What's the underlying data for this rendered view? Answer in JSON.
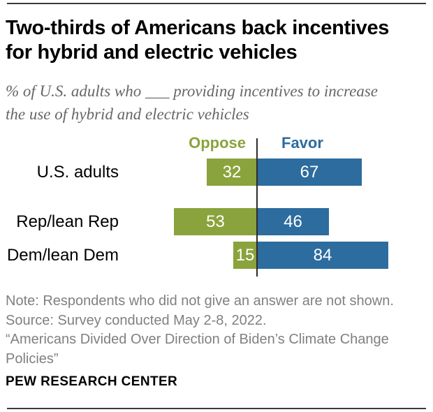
{
  "header": {
    "title_lines": [
      "Two-thirds of Americans back incentives",
      "for hybrid and electric vehicles"
    ],
    "subtitle_lines": [
      "% of U.S. adults who ___ providing incentives to increase",
      "the use of hybrid and electric vehicles"
    ]
  },
  "chart_data": {
    "type": "bar",
    "orientation": "diverging-horizontal",
    "title": "Two-thirds of Americans back incentives for hybrid and electric vehicles",
    "subtitle": "% of U.S. adults who ___ providing incentives to increase the use of hybrid and electric vehicles",
    "categories": [
      "U.S. adults",
      "Rep/lean Rep",
      "Dem/lean Dem"
    ],
    "series": [
      {
        "name": "Oppose",
        "side": "left",
        "color": "#8aa33c",
        "values": [
          32,
          53,
          15
        ]
      },
      {
        "name": "Favor",
        "side": "right",
        "color": "#2d6c9e",
        "values": [
          67,
          46,
          84
        ]
      }
    ],
    "legend_position": "top",
    "value_labels": "inside-white",
    "axis": {
      "center": 0,
      "grid": false
    }
  },
  "footer": {
    "note_lines": [
      "Note: Respondents who did not give an answer are not shown.",
      "Source: Survey conducted May 2-8, 2022.",
      "“Americans Divided Over Direction of Biden’s Climate Change",
      "Policies”"
    ],
    "brand": "PEW RESEARCH CENTER"
  },
  "colors": {
    "oppose_green": "#8aa33c",
    "favor_blue": "#2d6c9e",
    "axis_line": "#2b2b2b",
    "subtitle_gray": "#666666",
    "note_gray": "#808080",
    "text_black": "#000000"
  }
}
